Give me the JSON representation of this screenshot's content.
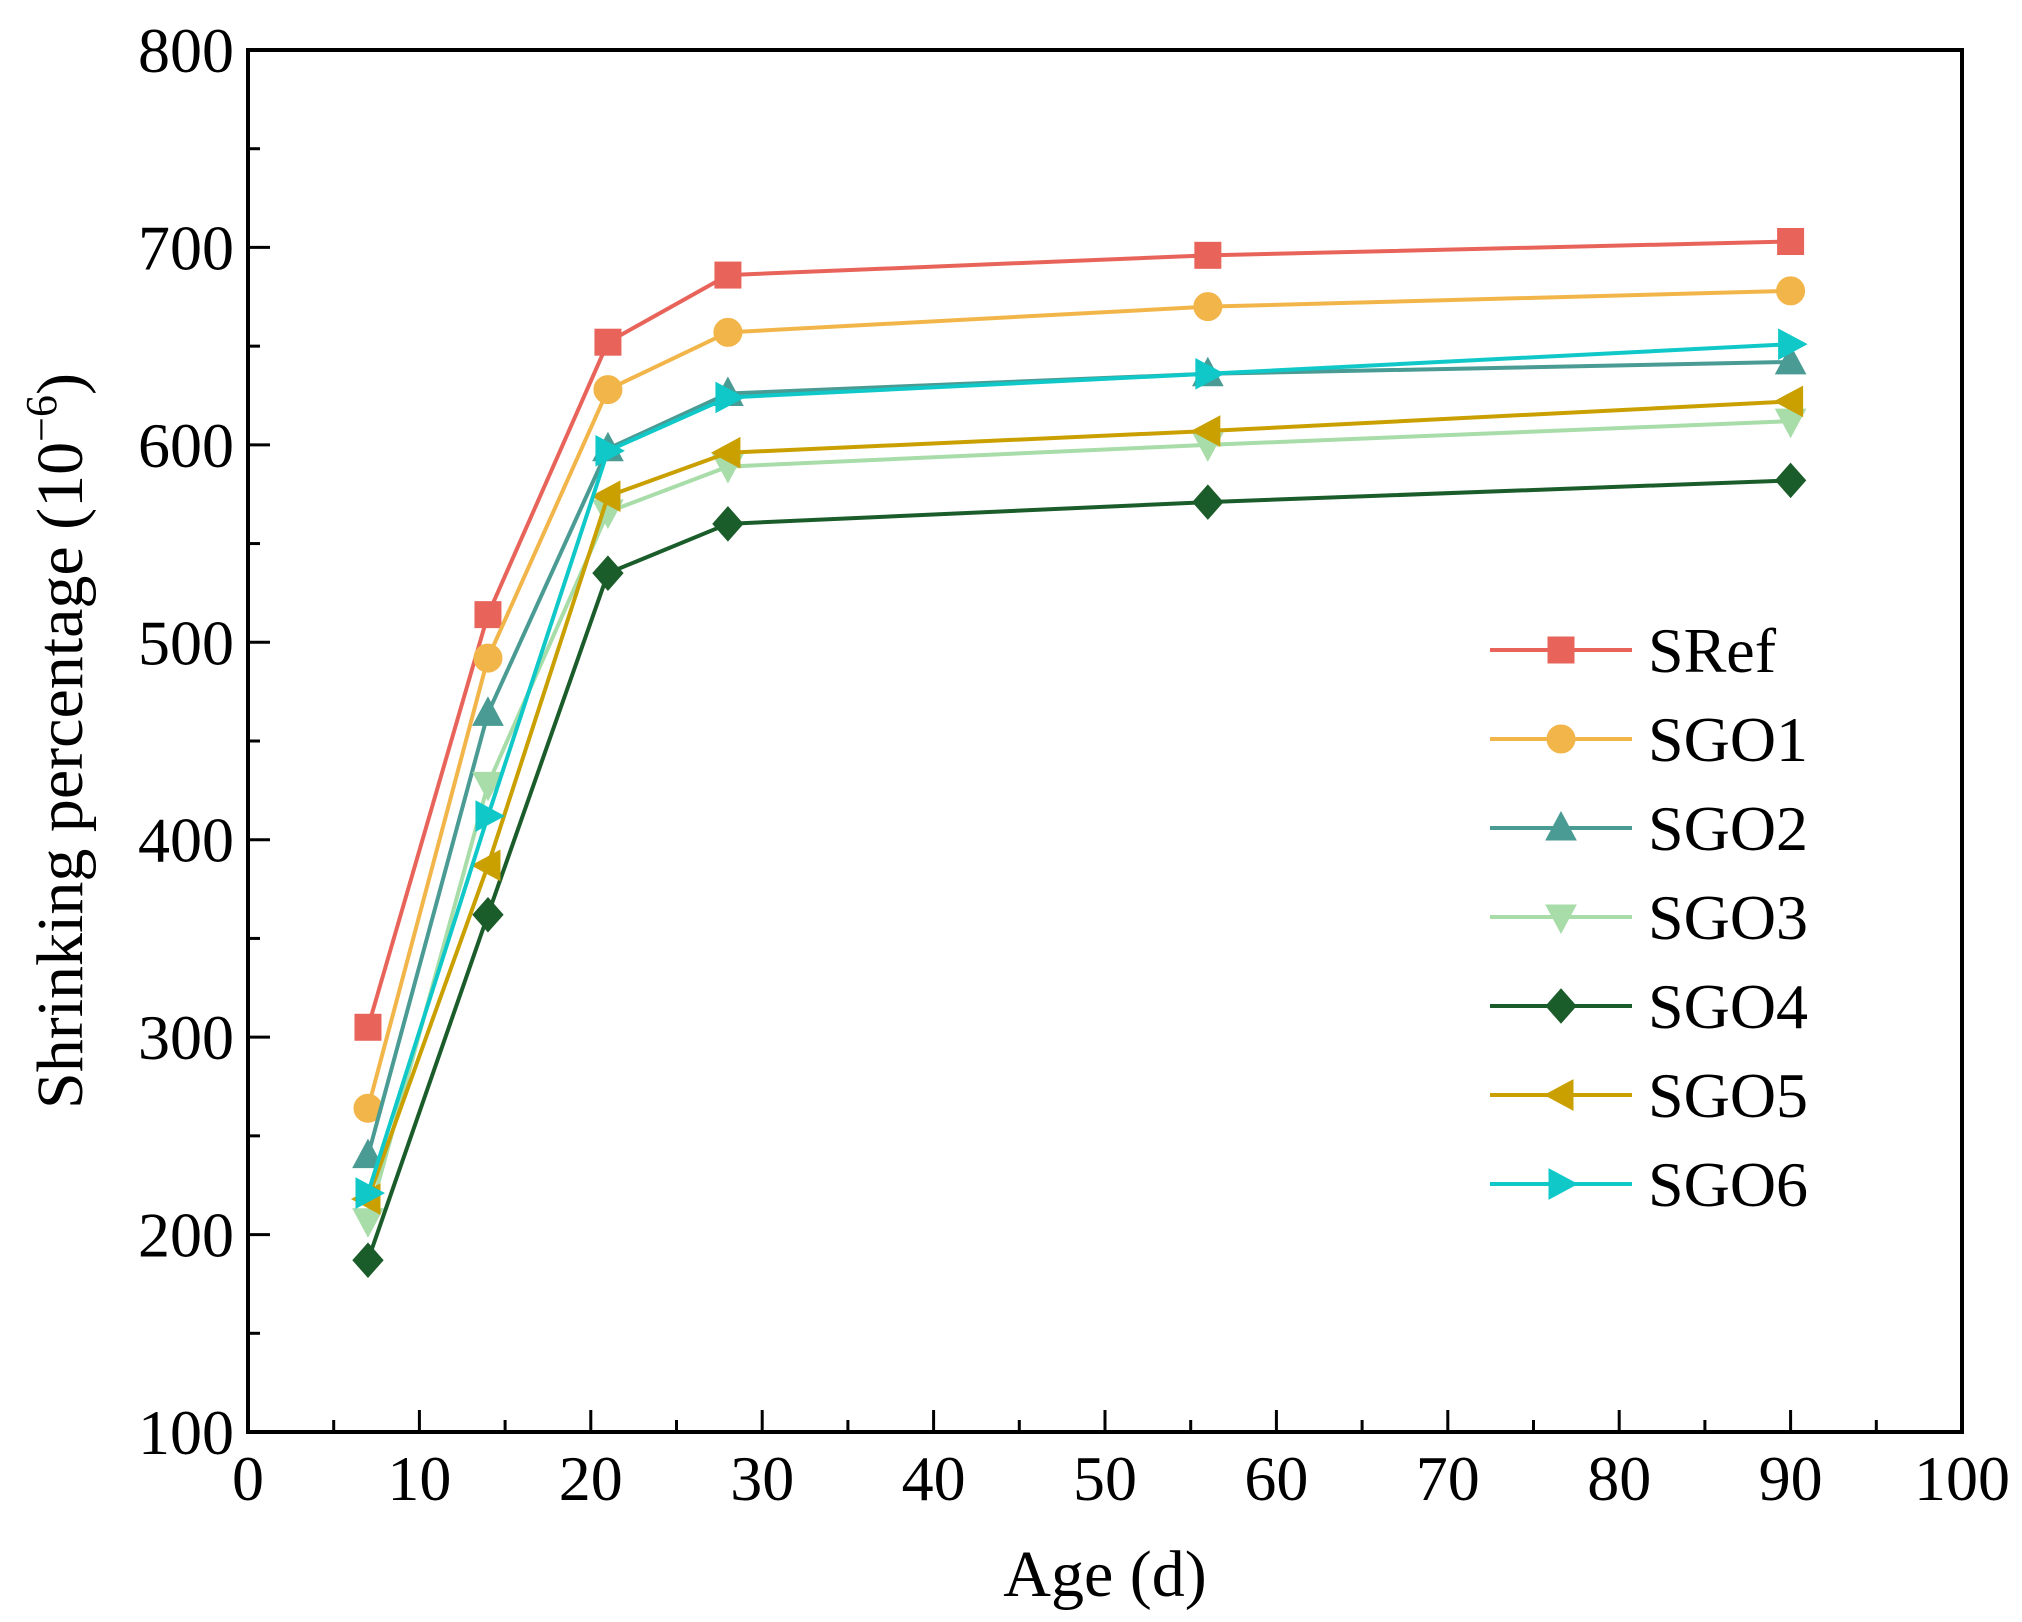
{
  "chart_data": {
    "type": "line",
    "title": "",
    "xlabel": "Age (d)",
    "ylabel_main": "Shrinking percentage (10",
    "ylabel_sup": "−6",
    "ylabel_close": ")",
    "xlim": [
      0,
      100
    ],
    "ylim": [
      100,
      800
    ],
    "x_ticks": [
      0,
      10,
      20,
      30,
      40,
      50,
      60,
      70,
      80,
      90,
      100
    ],
    "y_ticks": [
      100,
      200,
      300,
      400,
      500,
      600,
      700,
      800
    ],
    "x_tick_labels": [
      "0",
      "10",
      "20",
      "30",
      "40",
      "50",
      "60",
      "70",
      "80",
      "90",
      "100"
    ],
    "y_tick_labels": [
      "100",
      "200",
      "300",
      "400",
      "500",
      "600",
      "700",
      "800"
    ],
    "legend_position": "right",
    "x": [
      7,
      14,
      21,
      28,
      56,
      90
    ],
    "series": [
      {
        "name": "SRef",
        "color": "#e8645a",
        "marker": "square",
        "values": [
          305,
          514,
          652,
          686,
          696,
          703
        ]
      },
      {
        "name": "SGO1",
        "color": "#f2b54a",
        "marker": "circle",
        "values": [
          264,
          492,
          628,
          657,
          670,
          678
        ]
      },
      {
        "name": "SGO2",
        "color": "#4a9b94",
        "marker": "triangle-up",
        "values": [
          240,
          464,
          598,
          626,
          636,
          642
        ]
      },
      {
        "name": "SGO3",
        "color": "#a8dca8",
        "marker": "triangle-down",
        "values": [
          207,
          428,
          566,
          589,
          600,
          612
        ]
      },
      {
        "name": "SGO4",
        "color": "#1a5c2a",
        "marker": "diamond",
        "values": [
          187,
          362,
          535,
          560,
          571,
          582
        ]
      },
      {
        "name": "SGO5",
        "color": "#c9a000",
        "marker": "triangle-left",
        "values": [
          218,
          387,
          574,
          596,
          607,
          622
        ]
      },
      {
        "name": "SGO6",
        "color": "#10c8c8",
        "marker": "triangle-right",
        "values": [
          221,
          412,
          597,
          624,
          636,
          651
        ]
      }
    ]
  }
}
